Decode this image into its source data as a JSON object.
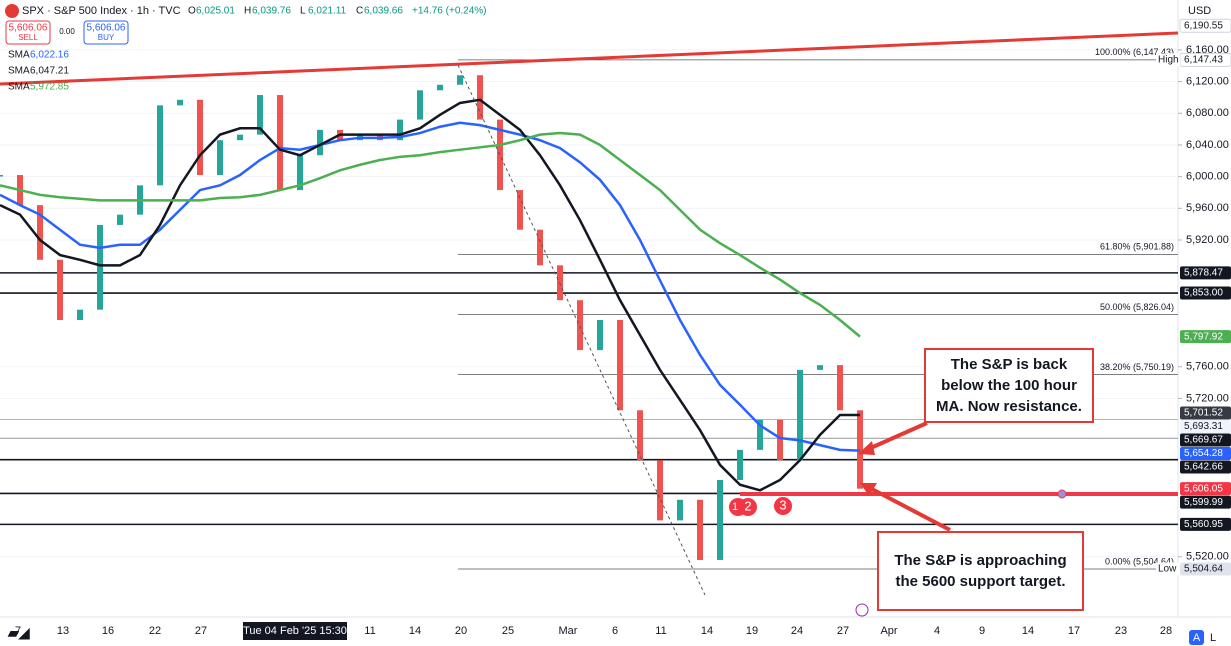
{
  "header": {
    "symbol": "SPX · S&P 500 Index · 1h · TVC",
    "ohlc": [
      {
        "k": "O",
        "v": "6,025.01"
      },
      {
        "k": "H",
        "v": "6,039.76"
      },
      {
        "k": "L",
        "v": "6,021.11"
      },
      {
        "k": "C",
        "v": "6,039.66"
      }
    ],
    "change": "+14.76 (+0.24%)",
    "trade": {
      "sell_price": "5,606.06",
      "sell": "SELL",
      "spread": "0.00",
      "buy_price": "5,606.06",
      "buy": "BUY"
    },
    "currency": "USD",
    "scale_buttons": [
      "A",
      "L"
    ],
    "markers": [
      "1",
      "2",
      "3"
    ],
    "annotations": [
      "The S&P is back below the 100 hour MA. Now resistance.",
      "The S&P is approaching the 5600 support target."
    ]
  },
  "chart_data": {
    "type": "line",
    "ylim": [
      5444,
      6223
    ],
    "yticks": [
      {
        "value": 6160,
        "label": "6,160.00"
      },
      {
        "value": 6120,
        "label": "6,120.00"
      },
      {
        "value": 6080,
        "label": "6,080.00"
      },
      {
        "value": 6040,
        "label": "6,040.00"
      },
      {
        "value": 6000,
        "label": "6,000.00"
      },
      {
        "value": 5960,
        "label": "5,960.00"
      },
      {
        "value": 5920,
        "label": "5,920.00"
      },
      {
        "value": 5760,
        "label": "5,760.00"
      },
      {
        "value": 5720,
        "label": "5,720.00"
      },
      {
        "value": 5520,
        "label": "5,520.00"
      }
    ],
    "time_labels": [
      "7",
      "13",
      "16",
      "22",
      "27",
      "11",
      "14",
      "20",
      "25",
      "Mar",
      "6",
      "11",
      "14",
      "19",
      "24",
      "27",
      "Apr",
      "4",
      "9",
      "14",
      "17",
      "23",
      "28"
    ],
    "crosshair_time": "Tue 04 Feb '25 15:30",
    "up_color": "#26a69a",
    "down_color": "#ef5350",
    "price": [
      6002,
      5964,
      5895,
      5819,
      5832,
      5939,
      5952,
      5989,
      6090,
      6097,
      6002,
      6046,
      6053,
      6103,
      5983,
      6027,
      6059,
      6046,
      6053,
      6046,
      6072,
      6109,
      6116,
      6128,
      6072,
      5983,
      5933,
      5888,
      5844,
      5781,
      5819,
      5705,
      5642,
      5566,
      5592,
      5516,
      5617,
      5655,
      5693,
      5642,
      5756,
      5762,
      5705,
      5606
    ],
    "series": [
      {
        "name": "SMA",
        "color": "#2962ff",
        "legend_value": "6,022.16",
        "values": [
          5977,
          5964,
          5952,
          5933,
          5914,
          5910,
          5914,
          5914,
          5933,
          5958,
          5983,
          5989,
          6002,
          6021,
          6036,
          6034,
          6040,
          6046,
          6049,
          6049,
          6050,
          6055,
          6063,
          6068,
          6065,
          6059,
          6053,
          6046,
          6036,
          6018,
          5996,
          5964,
          5920,
          5869,
          5819,
          5775,
          5737,
          5712,
          5686,
          5670,
          5667,
          5661,
          5655,
          5654
        ]
      },
      {
        "name": "SMA",
        "color": "#131722",
        "legend_value": "6,047.21",
        "values": [
          5964,
          5952,
          5920,
          5901,
          5895,
          5888,
          5888,
          5901,
          5939,
          5989,
          6027,
          6053,
          6061,
          6061,
          6034,
          6027,
          6040,
          6053,
          6053,
          6053,
          6053,
          6061,
          6078,
          6093,
          6097,
          6078,
          6059,
          6027,
          5989,
          5945,
          5895,
          5844,
          5800,
          5756,
          5718,
          5680,
          5636,
          5611,
          5604,
          5617,
          5642,
          5674,
          5699,
          5699
        ]
      },
      {
        "name": "SMA",
        "color": "#4caf50",
        "legend_value": "5,972.85",
        "values": [
          5989,
          5983,
          5977,
          5974,
          5972,
          5970,
          5970,
          5970,
          5970,
          5970,
          5970,
          5973,
          5974,
          5977,
          5983,
          5989,
          5998,
          6008,
          6015,
          6021,
          6025,
          6027,
          6031,
          6034,
          6037,
          6040,
          6046,
          6053,
          6055,
          6053,
          6040,
          6021,
          6002,
          5983,
          5958,
          5933,
          5916,
          5901,
          5885,
          5870,
          5853,
          5838,
          5819,
          5798
        ]
      }
    ],
    "fib_levels": [
      {
        "value": 6147.43,
        "label": "100.00% (6,147.43)"
      },
      {
        "value": 5901.88,
        "label": "61.80% (5,901.88)"
      },
      {
        "value": 5826.04,
        "label": "50.00% (5,826.04)"
      },
      {
        "value": 5750.19,
        "label": "38.20% (5,750.19)"
      },
      {
        "value": 5504.64,
        "label": "0.00% (5,504.64)"
      }
    ],
    "price_badges": [
      {
        "value": 6190.55,
        "label": "6,190.55",
        "bg": "#ffffff",
        "fg": "#131722"
      },
      {
        "value": 6147.43,
        "label": "6,147.43",
        "bg": "#ffffff",
        "fg": "#131722",
        "tag": "High"
      },
      {
        "value": 5878.47,
        "label": "5,878.47",
        "bg": "#131722",
        "fg": "#ffffff",
        "line": "#131722"
      },
      {
        "value": 5853.0,
        "label": "5,853.00",
        "bg": "#131722",
        "fg": "#ffffff",
        "line": "#131722"
      },
      {
        "value": 5797.92,
        "label": "5,797.92",
        "bg": "#4caf50",
        "fg": "#ffffff"
      },
      {
        "value": 5701.52,
        "label": "5,701.52",
        "bg": "#363a45",
        "fg": "#ffffff"
      },
      {
        "value": 5693.31,
        "label": "5,693.31",
        "bg": "#f0f3fa",
        "fg": "#131722",
        "line": "#b2b5be"
      },
      {
        "value": 5669.67,
        "label": "5,669.67",
        "bg": "#131722",
        "fg": "#ffffff",
        "line": "#9598a1"
      },
      {
        "value": 5654.28,
        "label": "5,654.28",
        "bg": "#2962ff",
        "fg": "#ffffff"
      },
      {
        "value": 5642.66,
        "label": "5,642.66",
        "bg": "#131722",
        "fg": "#ffffff",
        "line": "#131722"
      },
      {
        "value": 5606.05,
        "label": "5,606.05",
        "bg": "#f23645",
        "fg": "#ffffff"
      },
      {
        "value": 5599.99,
        "label": "5,599.99",
        "bg": "#131722",
        "fg": "#ffffff",
        "line": "#131722"
      },
      {
        "value": 5560.95,
        "label": "5,560.95",
        "bg": "#131722",
        "fg": "#ffffff",
        "line": "#131722"
      },
      {
        "value": 5504.64,
        "label": "5,504.64",
        "bg": "#e0e3eb",
        "fg": "#131722",
        "tag": "Low"
      }
    ]
  }
}
